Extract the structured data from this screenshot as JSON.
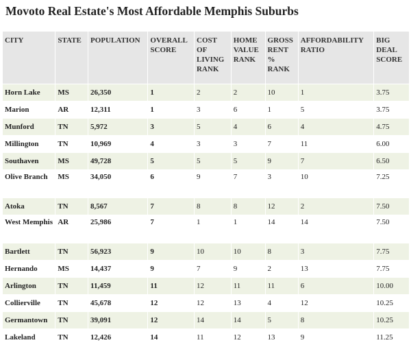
{
  "title": "Movoto Real Estate's Most Affordable Memphis Suburbs",
  "headers": [
    "CITY",
    "STATE",
    "POPULATION",
    "OVERALL SCORE",
    "COST OF LIVING RANK",
    "HOME VALUE RANK",
    "GROSS RENT % RANK",
    "AFFORDABILITY RATIO",
    "BIG DEAL SCORE"
  ],
  "rows": [
    [
      "Horn Lake",
      "MS",
      "26,350",
      "1",
      "2",
      "2",
      "10",
      "1",
      "3.75"
    ],
    [
      "Marion",
      "AR",
      "12,311",
      "1",
      "3",
      "6",
      "1",
      "5",
      "3.75"
    ],
    [
      "Munford",
      "TN",
      "5,972",
      "3",
      "5",
      "4",
      "6",
      "4",
      "4.75"
    ],
    [
      "Millington",
      "TN",
      "10,969",
      "4",
      "3",
      "3",
      "7",
      "11",
      "6.00"
    ],
    [
      "Southaven",
      "MS",
      "49,728",
      "5",
      "5",
      "5",
      "9",
      "7",
      "6.50"
    ],
    [
      "Olive Branch",
      "MS",
      "34,050",
      "6",
      "9",
      "7",
      "3",
      "10",
      "7.25"
    ],
    [
      "Atoka",
      "TN",
      "8,567",
      "7",
      "8",
      "8",
      "12",
      "2",
      "7.50"
    ],
    [
      "West Memphis",
      "AR",
      "25,986",
      "7",
      "1",
      "1",
      "14",
      "14",
      "7.50"
    ],
    [
      "Bartlett",
      "TN",
      "56,923",
      "9",
      "10",
      "10",
      "8",
      "3",
      "7.75"
    ],
    [
      "Hernando",
      "MS",
      "14,437",
      "9",
      "7",
      "9",
      "2",
      "13",
      "7.75"
    ],
    [
      "Arlington",
      "TN",
      "11,459",
      "11",
      "12",
      "11",
      "11",
      "6",
      "10.00"
    ],
    [
      "Collierville",
      "TN",
      "45,678",
      "12",
      "12",
      "13",
      "4",
      "12",
      "10.25"
    ],
    [
      "Germantown",
      "TN",
      "39,091",
      "12",
      "14",
      "14",
      "5",
      "8",
      "10.25"
    ],
    [
      "Lakeland",
      "TN",
      "12,426",
      "14",
      "11",
      "12",
      "13",
      "9",
      "11.25"
    ]
  ]
}
